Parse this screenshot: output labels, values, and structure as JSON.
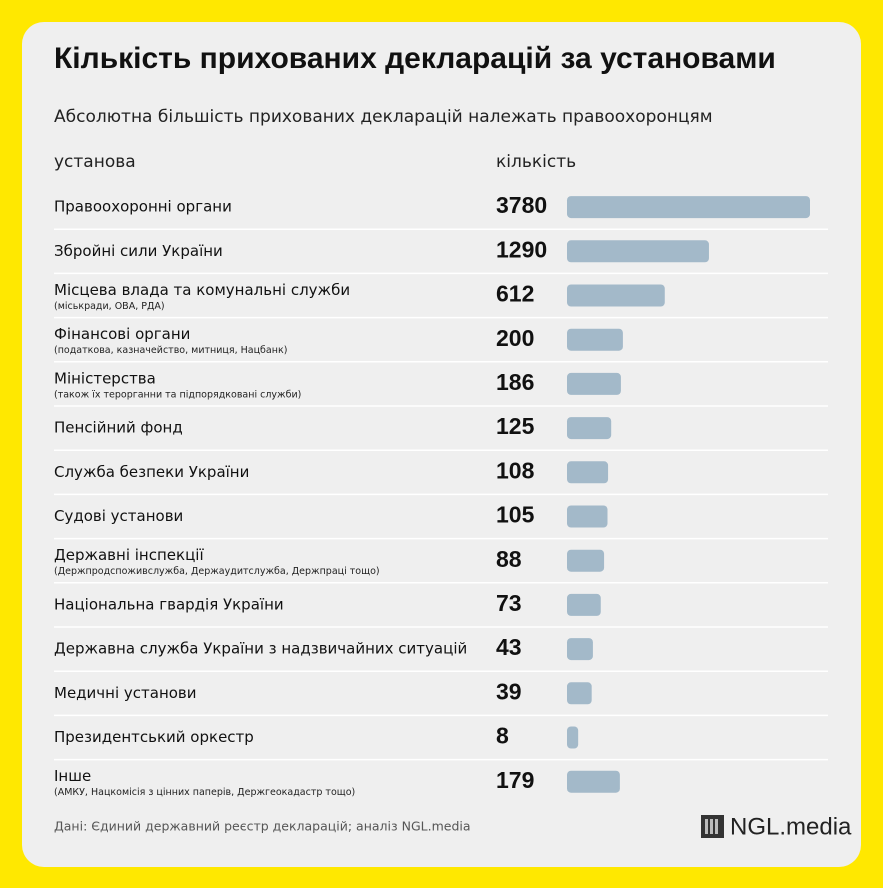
{
  "chart_data": {
    "type": "bar",
    "title": "Кількість прихованих декларацій за установами",
    "subtitle": "Абсолютна більшість прихованих декларацій належать правоохоронцям",
    "columns": [
      "установа",
      "кількість"
    ],
    "categories": [
      "Правоохоронні органи",
      "Збройні сили України",
      "Місцева влада та комунальні служби",
      "Фінансові органи",
      "Міністерства",
      "Пенсійний фонд",
      "Служба безпеки України",
      "Судові установи",
      "Державні інспекції",
      "Національна гвардія України",
      "Державна служба України з надзвичайних ситуацій",
      "Медичні установи",
      "Президентський оркестр",
      "Інше"
    ],
    "notes": [
      null,
      null,
      "(міськради, ОВА, РДА)",
      "(податкова, казначейство, митниця, Нацбанк)",
      "(також їх терорганни та підпорядковані служби)",
      null,
      null,
      null,
      "(Держпродспоживслужба, Держаудитслужба, Держпраці тощо)",
      null,
      null,
      null,
      null,
      "(АМКУ, Нацкомісія з цінних паперів, Держгеокадастр тощо)"
    ],
    "values": [
      3780,
      1290,
      612,
      200,
      186,
      125,
      108,
      105,
      88,
      73,
      43,
      39,
      8,
      179
    ],
    "color": "#a3b9c9",
    "bar_scale": "sqrt",
    "source": "Дані: Єдиний державний реєстр декларацій; аналіз NGL.media",
    "brand": "NGL.media"
  }
}
